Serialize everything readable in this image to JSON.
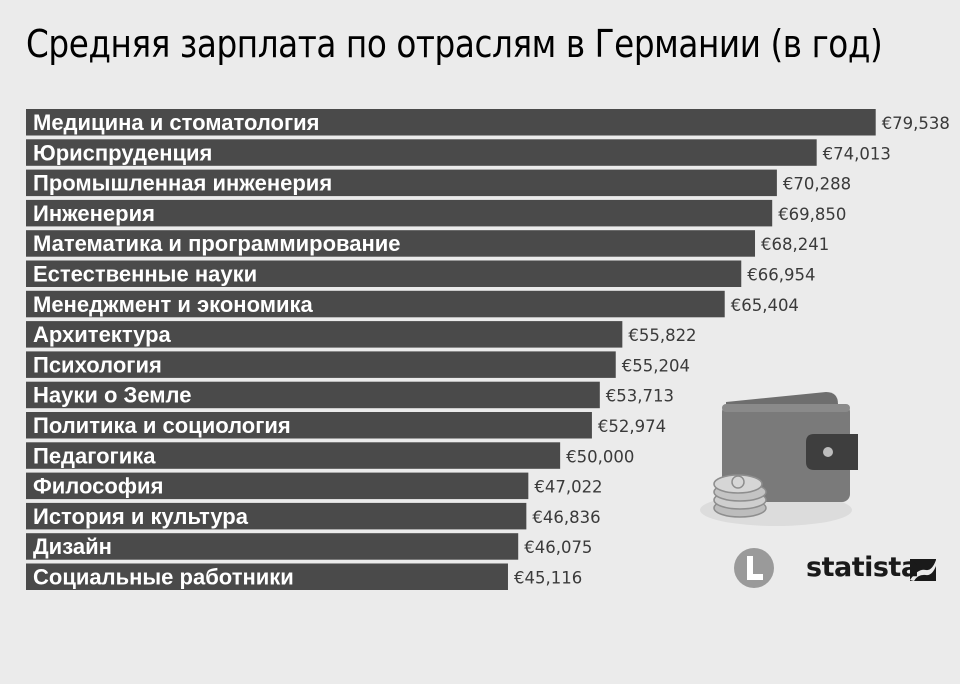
{
  "title": "Средняя зарплата по отраслям в Германии (в год)",
  "brand": "statista",
  "colors": {
    "bar": "#4a4a4a",
    "bar_edge": "#5b5b5b",
    "label": "#ffffff",
    "value": "#3a3a3a",
    "background": "#ebebeb"
  },
  "icons": [
    "wallet-icon",
    "coins-icon",
    "badge-l-icon",
    "statista-logo-icon"
  ],
  "chart_data": {
    "type": "bar",
    "orientation": "horizontal",
    "title": "Средняя зарплата по отраслям в Германии (в год)",
    "xlim": [
      0,
      82000
    ],
    "grid": false,
    "legend": "none",
    "categories": [
      "Медицина и стоматология",
      "Юриспруденция",
      "Промышленная инженерия",
      "Инженерия",
      "Математика и программирование",
      "Естественные науки",
      "Менеджмент и экономика",
      "Архитектура",
      "Психология",
      "Науки о Земле",
      "Политика и социология",
      "Педагогика",
      "Философия",
      "История и культура",
      "Дизайн",
      "Социальные работники"
    ],
    "values": [
      79538,
      74013,
      70288,
      69850,
      68241,
      66954,
      65404,
      55822,
      55204,
      53713,
      52974,
      50000,
      47022,
      46836,
      46075,
      45116
    ],
    "value_labels": [
      "€79,538",
      "€74,013",
      "€70,288",
      "€69,850",
      "€68,241",
      "€66,954",
      "€65,404",
      "€55,822",
      "€55,204",
      "€53,713",
      "€52,974",
      "€50,000",
      "€47,022",
      "€46,836",
      "€46,075",
      "€45,116"
    ]
  }
}
